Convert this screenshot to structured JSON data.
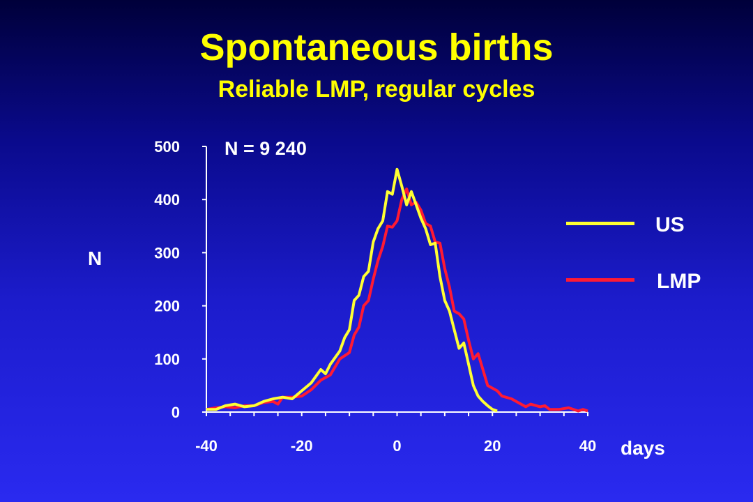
{
  "header": {
    "title": "Spontaneous births",
    "subtitle": "Reliable LMP, regular cycles"
  },
  "chart_data": {
    "type": "line",
    "title": "Spontaneous births",
    "subtitle": "Reliable LMP, regular cycles",
    "xlabel": "days",
    "ylabel": "N",
    "annotation": "N = 9 240",
    "xlim": [
      -40,
      40
    ],
    "ylim": [
      0,
      500
    ],
    "x_ticks": [
      -40,
      -20,
      0,
      20,
      40
    ],
    "y_ticks": [
      0,
      100,
      200,
      300,
      400,
      500
    ],
    "x_tick_labels": [
      "-40",
      "-20",
      "0",
      "20",
      "40"
    ],
    "y_tick_labels": [
      "0",
      "100",
      "200",
      "300",
      "400",
      "500"
    ],
    "grid": false,
    "legend_position": "right",
    "series": [
      {
        "name": "US",
        "color": "#ffff33",
        "points": [
          [
            -40,
            5
          ],
          [
            -38,
            5
          ],
          [
            -36,
            12
          ],
          [
            -34,
            15
          ],
          [
            -32,
            10
          ],
          [
            -30,
            12
          ],
          [
            -28,
            20
          ],
          [
            -26,
            25
          ],
          [
            -24,
            28
          ],
          [
            -22,
            25
          ],
          [
            -20,
            40
          ],
          [
            -18,
            55
          ],
          [
            -16,
            80
          ],
          [
            -15,
            72
          ],
          [
            -14,
            90
          ],
          [
            -12,
            115
          ],
          [
            -11,
            140
          ],
          [
            -10,
            155
          ],
          [
            -9,
            210
          ],
          [
            -8,
            220
          ],
          [
            -7,
            255
          ],
          [
            -6,
            265
          ],
          [
            -5,
            320
          ],
          [
            -4,
            345
          ],
          [
            -3,
            360
          ],
          [
            -2,
            415
          ],
          [
            -1,
            410
          ],
          [
            0,
            457
          ],
          [
            1,
            425
          ],
          [
            2,
            390
          ],
          [
            3,
            415
          ],
          [
            4,
            390
          ],
          [
            5,
            365
          ],
          [
            6,
            345
          ],
          [
            7,
            315
          ],
          [
            8,
            318
          ],
          [
            9,
            255
          ],
          [
            10,
            210
          ],
          [
            11,
            190
          ],
          [
            12,
            155
          ],
          [
            13,
            120
          ],
          [
            14,
            130
          ],
          [
            15,
            90
          ],
          [
            16,
            50
          ],
          [
            17,
            30
          ],
          [
            18,
            20
          ],
          [
            19,
            12
          ],
          [
            20,
            5
          ],
          [
            21,
            2
          ]
        ]
      },
      {
        "name": "LMP",
        "color": "#ff1a33",
        "points": [
          [
            -40,
            5
          ],
          [
            -38,
            8
          ],
          [
            -36,
            10
          ],
          [
            -34,
            8
          ],
          [
            -32,
            12
          ],
          [
            -30,
            12
          ],
          [
            -28,
            18
          ],
          [
            -26,
            20
          ],
          [
            -25,
            15
          ],
          [
            -24,
            28
          ],
          [
            -22,
            28
          ],
          [
            -20,
            30
          ],
          [
            -18,
            42
          ],
          [
            -16,
            60
          ],
          [
            -14,
            70
          ],
          [
            -12,
            100
          ],
          [
            -10,
            112
          ],
          [
            -9,
            145
          ],
          [
            -8,
            160
          ],
          [
            -7,
            200
          ],
          [
            -6,
            210
          ],
          [
            -5,
            250
          ],
          [
            -4,
            285
          ],
          [
            -3,
            312
          ],
          [
            -2,
            350
          ],
          [
            -1,
            348
          ],
          [
            0,
            360
          ],
          [
            1,
            400
          ],
          [
            2,
            420
          ],
          [
            3,
            390
          ],
          [
            4,
            395
          ],
          [
            5,
            380
          ],
          [
            6,
            355
          ],
          [
            7,
            350
          ],
          [
            8,
            320
          ],
          [
            9,
            318
          ],
          [
            10,
            270
          ],
          [
            11,
            235
          ],
          [
            12,
            190
          ],
          [
            13,
            185
          ],
          [
            14,
            175
          ],
          [
            15,
            135
          ],
          [
            16,
            100
          ],
          [
            17,
            110
          ],
          [
            18,
            80
          ],
          [
            19,
            50
          ],
          [
            20,
            45
          ],
          [
            21,
            40
          ],
          [
            22,
            30
          ],
          [
            24,
            25
          ],
          [
            26,
            15
          ],
          [
            27,
            10
          ],
          [
            28,
            15
          ],
          [
            30,
            10
          ],
          [
            31,
            12
          ],
          [
            32,
            5
          ],
          [
            34,
            5
          ],
          [
            36,
            8
          ],
          [
            38,
            2
          ],
          [
            39,
            5
          ],
          [
            40,
            2
          ]
        ]
      }
    ]
  }
}
